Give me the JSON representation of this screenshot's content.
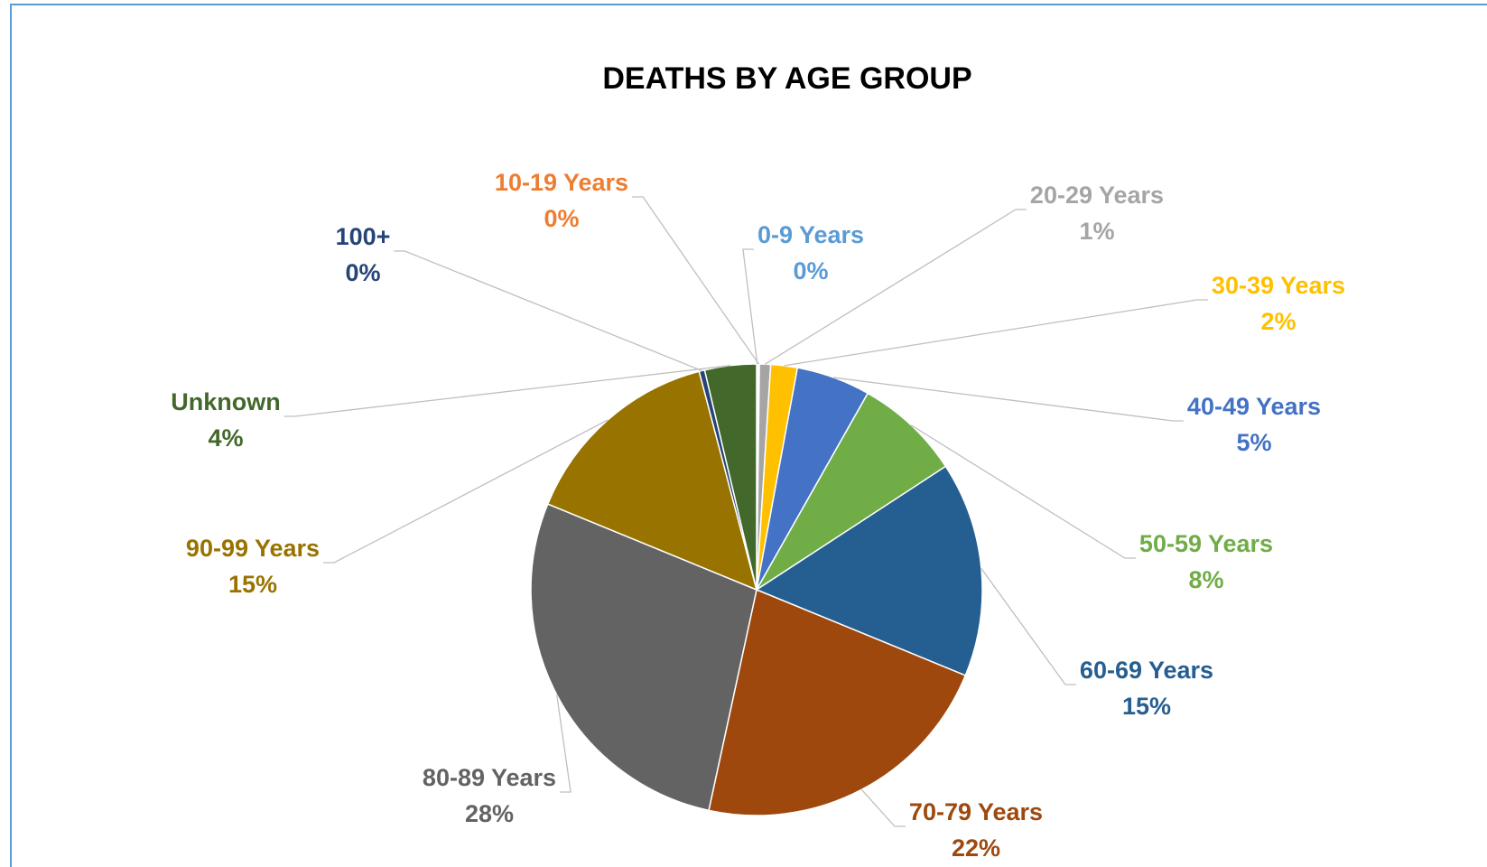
{
  "chart_data": {
    "type": "pie",
    "title": "DEATHS BY AGE GROUP",
    "categories": [
      "0-9 Years",
      "10-19 Years",
      "20-29 Years",
      "30-39 Years",
      "40-49 Years",
      "50-59 Years",
      "60-69 Years",
      "70-79 Years",
      "80-89 Years",
      "90-99 Years",
      "100+",
      "Unknown"
    ],
    "values": [
      0.1,
      0.1,
      0.8,
      1.9,
      5.3,
      7.6,
      15.4,
      22.2,
      27.8,
      14.7,
      0.4,
      3.7
    ],
    "value_labels": [
      "0%",
      "0%",
      "1%",
      "2%",
      "5%",
      "8%",
      "15%",
      "22%",
      "28%",
      "15%",
      "0%",
      "4%"
    ],
    "colors": [
      "#5b9bd5",
      "#ed7d31",
      "#a5a5a5",
      "#ffc000",
      "#4472c4",
      "#70ad47",
      "#255e91",
      "#9e480e",
      "#636363",
      "#997300",
      "#264478",
      "#43682b"
    ]
  }
}
